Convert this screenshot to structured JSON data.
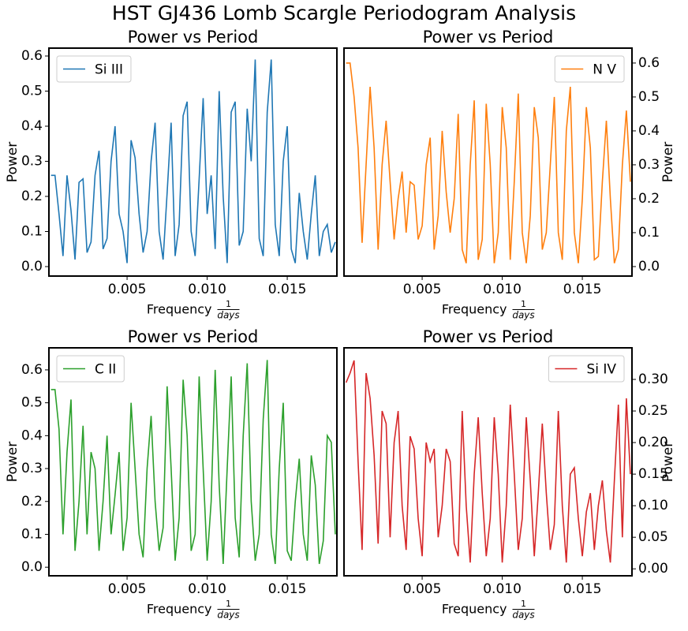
{
  "title": "HST GJ436 Lomb Scargle Periodogram Analysis",
  "chart_data": [
    {
      "type": "line",
      "title": "Power vs Period",
      "xlabel": {
        "text": "Frequency",
        "numerator": "1",
        "denominator": "days"
      },
      "ylabel": "Power",
      "yaxis": "left",
      "legend": "upper left",
      "xlim": [
        0.00012,
        0.0181
      ],
      "ylim": [
        -0.027,
        0.6225
      ],
      "xticks": [
        0.005,
        {
          "value": 0.01,
          "label": "0.010"
        },
        0.015
      ],
      "yticks": [
        {
          "value": 0,
          "label": "0.0"
        },
        0.1,
        0.2,
        0.3,
        0.4,
        0.5,
        0.6
      ],
      "x": [
        0.00025,
        0.0005,
        0.00075,
        0.001,
        0.00125,
        0.0015,
        0.00175,
        0.002,
        0.00225,
        0.0025,
        0.00275,
        0.003,
        0.00325,
        0.0035,
        0.00375,
        0.004,
        0.00425,
        0.0045,
        0.00475,
        0.005,
        0.00525,
        0.0055,
        0.00575,
        0.006,
        0.00625,
        0.0065,
        0.00675,
        0.007,
        0.00725,
        0.0075,
        0.00775,
        0.008,
        0.00825,
        0.0085,
        0.00875,
        0.009,
        0.00925,
        0.0095,
        0.00975,
        0.01,
        0.01025,
        0.0105,
        0.01075,
        0.011,
        0.01125,
        0.0115,
        0.01175,
        0.012,
        0.01225,
        0.0125,
        0.01275,
        0.013,
        0.01325,
        0.0135,
        0.01375,
        0.014,
        0.01425,
        0.0145,
        0.01475,
        0.015,
        0.01525,
        0.0155,
        0.01575,
        0.016,
        0.01625,
        0.0165,
        0.01675,
        0.017,
        0.01725,
        0.0175,
        0.01775,
        0.018
      ],
      "series": [
        {
          "name": "Si III",
          "color": "#1f77b4",
          "values": [
            0.26,
            0.26,
            0.15,
            0.03,
            0.26,
            0.16,
            0.02,
            0.24,
            0.25,
            0.04,
            0.07,
            0.26,
            0.33,
            0.05,
            0.08,
            0.3,
            0.4,
            0.15,
            0.1,
            0.01,
            0.36,
            0.31,
            0.15,
            0.04,
            0.1,
            0.3,
            0.41,
            0.1,
            0.02,
            0.21,
            0.41,
            0.03,
            0.12,
            0.43,
            0.47,
            0.1,
            0.03,
            0.25,
            0.48,
            0.15,
            0.26,
            0.05,
            0.5,
            0.2,
            0.01,
            0.44,
            0.47,
            0.06,
            0.1,
            0.45,
            0.3,
            0.59,
            0.08,
            0.03,
            0.44,
            0.59,
            0.12,
            0.03,
            0.3,
            0.4,
            0.05,
            0.01,
            0.21,
            0.1,
            0.02,
            0.15,
            0.26,
            0.03,
            0.1,
            0.12,
            0.04,
            0.07
          ]
        }
      ]
    },
    {
      "type": "line",
      "title": "Power vs Period",
      "xlabel": {
        "text": "Frequency",
        "numerator": "1",
        "denominator": "days"
      },
      "ylabel": "Power",
      "yaxis": "right",
      "legend": "upper right",
      "xlim": [
        0.00012,
        0.0181
      ],
      "ylim": [
        -0.028,
        0.644
      ],
      "xticks": [
        0.005,
        {
          "value": 0.01,
          "label": "0.010"
        },
        0.015
      ],
      "yticks": [
        {
          "value": 0,
          "label": "0.0"
        },
        0.1,
        0.2,
        0.3,
        0.4,
        0.5,
        0.6
      ],
      "x": [
        0.00025,
        0.0005,
        0.00075,
        0.001,
        0.00125,
        0.0015,
        0.00175,
        0.002,
        0.00225,
        0.0025,
        0.00275,
        0.003,
        0.00325,
        0.0035,
        0.00375,
        0.004,
        0.00425,
        0.0045,
        0.00475,
        0.005,
        0.00525,
        0.0055,
        0.00575,
        0.006,
        0.00625,
        0.0065,
        0.00675,
        0.007,
        0.00725,
        0.0075,
        0.00775,
        0.008,
        0.00825,
        0.0085,
        0.00875,
        0.009,
        0.00925,
        0.0095,
        0.00975,
        0.01,
        0.01025,
        0.0105,
        0.01075,
        0.011,
        0.01125,
        0.0115,
        0.01175,
        0.012,
        0.01225,
        0.0125,
        0.01275,
        0.013,
        0.01325,
        0.0135,
        0.01375,
        0.014,
        0.01425,
        0.0145,
        0.01475,
        0.015,
        0.01525,
        0.0155,
        0.01575,
        0.016,
        0.01625,
        0.0165,
        0.01675,
        0.017,
        0.01725,
        0.0175,
        0.01775,
        0.018
      ],
      "series": [
        {
          "name": "N V",
          "color": "#ff7f0e",
          "values": [
            0.6,
            0.6,
            0.5,
            0.35,
            0.07,
            0.3,
            0.53,
            0.35,
            0.05,
            0.3,
            0.43,
            0.25,
            0.08,
            0.2,
            0.28,
            0.1,
            0.25,
            0.24,
            0.08,
            0.12,
            0.3,
            0.38,
            0.05,
            0.15,
            0.4,
            0.22,
            0.1,
            0.2,
            0.45,
            0.05,
            0.01,
            0.3,
            0.49,
            0.02,
            0.08,
            0.48,
            0.3,
            0.01,
            0.1,
            0.47,
            0.35,
            0.02,
            0.25,
            0.51,
            0.1,
            0.01,
            0.15,
            0.47,
            0.38,
            0.05,
            0.1,
            0.3,
            0.5,
            0.1,
            0.02,
            0.4,
            0.53,
            0.1,
            0.01,
            0.2,
            0.47,
            0.35,
            0.02,
            0.03,
            0.25,
            0.43,
            0.2,
            0.01,
            0.05,
            0.3,
            0.46,
            0.25
          ]
        }
      ]
    },
    {
      "type": "line",
      "title": "Power vs Period",
      "xlabel": {
        "text": "Frequency",
        "numerator": "1",
        "denominator": "days"
      },
      "ylabel": "Power",
      "yaxis": "left",
      "legend": "upper left",
      "xlim": [
        0.00012,
        0.0181
      ],
      "ylim": [
        -0.026,
        0.667
      ],
      "xticks": [
        0.005,
        {
          "value": 0.01,
          "label": "0.010"
        },
        0.015
      ],
      "yticks": [
        {
          "value": 0,
          "label": "0.0"
        },
        0.1,
        0.2,
        0.3,
        0.4,
        0.5,
        0.6
      ],
      "x": [
        0.00025,
        0.0005,
        0.00075,
        0.001,
        0.00125,
        0.0015,
        0.00175,
        0.002,
        0.00225,
        0.0025,
        0.00275,
        0.003,
        0.00325,
        0.0035,
        0.00375,
        0.004,
        0.00425,
        0.0045,
        0.00475,
        0.005,
        0.00525,
        0.0055,
        0.00575,
        0.006,
        0.00625,
        0.0065,
        0.00675,
        0.007,
        0.00725,
        0.0075,
        0.00775,
        0.008,
        0.00825,
        0.0085,
        0.00875,
        0.009,
        0.00925,
        0.0095,
        0.00975,
        0.01,
        0.01025,
        0.0105,
        0.01075,
        0.011,
        0.01125,
        0.0115,
        0.01175,
        0.012,
        0.01225,
        0.0125,
        0.01275,
        0.013,
        0.01325,
        0.0135,
        0.01375,
        0.014,
        0.01425,
        0.0145,
        0.01475,
        0.015,
        0.01525,
        0.0155,
        0.01575,
        0.016,
        0.01625,
        0.0165,
        0.01675,
        0.017,
        0.01725,
        0.0175,
        0.01775,
        0.018
      ],
      "series": [
        {
          "name": "C II",
          "color": "#2ca02c",
          "values": [
            0.54,
            0.54,
            0.42,
            0.1,
            0.35,
            0.51,
            0.05,
            0.2,
            0.43,
            0.1,
            0.35,
            0.3,
            0.05,
            0.2,
            0.4,
            0.1,
            0.22,
            0.35,
            0.05,
            0.15,
            0.5,
            0.3,
            0.1,
            0.03,
            0.3,
            0.46,
            0.2,
            0.05,
            0.12,
            0.55,
            0.3,
            0.02,
            0.15,
            0.57,
            0.4,
            0.05,
            0.1,
            0.58,
            0.3,
            0.02,
            0.2,
            0.6,
            0.25,
            0.01,
            0.3,
            0.58,
            0.15,
            0.03,
            0.4,
            0.62,
            0.2,
            0.02,
            0.1,
            0.45,
            0.63,
            0.1,
            0.01,
            0.3,
            0.5,
            0.05,
            0.02,
            0.2,
            0.33,
            0.1,
            0.02,
            0.34,
            0.25,
            0.01,
            0.08,
            0.4,
            0.38,
            0.1
          ]
        }
      ]
    },
    {
      "type": "line",
      "title": "Power vs Period",
      "xlabel": {
        "text": "Frequency",
        "numerator": "1",
        "denominator": "days"
      },
      "ylabel": "Power",
      "yaxis": "right",
      "legend": "upper right",
      "xlim": [
        0.00012,
        0.0181
      ],
      "ylim": [
        -0.011,
        0.35
      ],
      "xticks": [
        0.005,
        {
          "value": 0.01,
          "label": "0.010"
        },
        0.015
      ],
      "yticks": [
        {
          "value": 0,
          "label": "0.00"
        },
        0.05,
        {
          "value": 0.1,
          "label": "0.10"
        },
        0.15,
        {
          "value": 0.2,
          "label": "0.20"
        },
        0.25,
        {
          "value": 0.3,
          "label": "0.30"
        }
      ],
      "x": [
        0.00025,
        0.0005,
        0.00075,
        0.001,
        0.00125,
        0.0015,
        0.00175,
        0.002,
        0.00225,
        0.0025,
        0.00275,
        0.003,
        0.00325,
        0.0035,
        0.00375,
        0.004,
        0.00425,
        0.0045,
        0.00475,
        0.005,
        0.00525,
        0.0055,
        0.00575,
        0.006,
        0.00625,
        0.0065,
        0.00675,
        0.007,
        0.00725,
        0.0075,
        0.00775,
        0.008,
        0.00825,
        0.0085,
        0.00875,
        0.009,
        0.00925,
        0.0095,
        0.00975,
        0.01,
        0.01025,
        0.0105,
        0.01075,
        0.011,
        0.01125,
        0.0115,
        0.01175,
        0.012,
        0.01225,
        0.0125,
        0.01275,
        0.013,
        0.01325,
        0.0135,
        0.01375,
        0.014,
        0.01425,
        0.0145,
        0.01475,
        0.015,
        0.01525,
        0.0155,
        0.01575,
        0.016,
        0.01625,
        0.0165,
        0.01675,
        0.017,
        0.01725,
        0.0175,
        0.01775,
        0.018
      ],
      "series": [
        {
          "name": "Si IV",
          "color": "#d62728",
          "values": [
            0.295,
            0.31,
            0.33,
            0.17,
            0.03,
            0.31,
            0.27,
            0.18,
            0.04,
            0.25,
            0.23,
            0.05,
            0.2,
            0.25,
            0.1,
            0.03,
            0.21,
            0.19,
            0.08,
            0.02,
            0.2,
            0.17,
            0.19,
            0.05,
            0.1,
            0.19,
            0.17,
            0.04,
            0.02,
            0.25,
            0.1,
            0.01,
            0.15,
            0.24,
            0.12,
            0.02,
            0.08,
            0.24,
            0.15,
            0.01,
            0.1,
            0.26,
            0.15,
            0.03,
            0.08,
            0.24,
            0.14,
            0.02,
            0.12,
            0.23,
            0.12,
            0.03,
            0.07,
            0.25,
            0.1,
            0.01,
            0.15,
            0.16,
            0.08,
            0.02,
            0.09,
            0.12,
            0.03,
            0.1,
            0.14,
            0.06,
            0.01,
            0.14,
            0.26,
            0.05,
            0.27,
            0.15
          ]
        }
      ]
    }
  ]
}
